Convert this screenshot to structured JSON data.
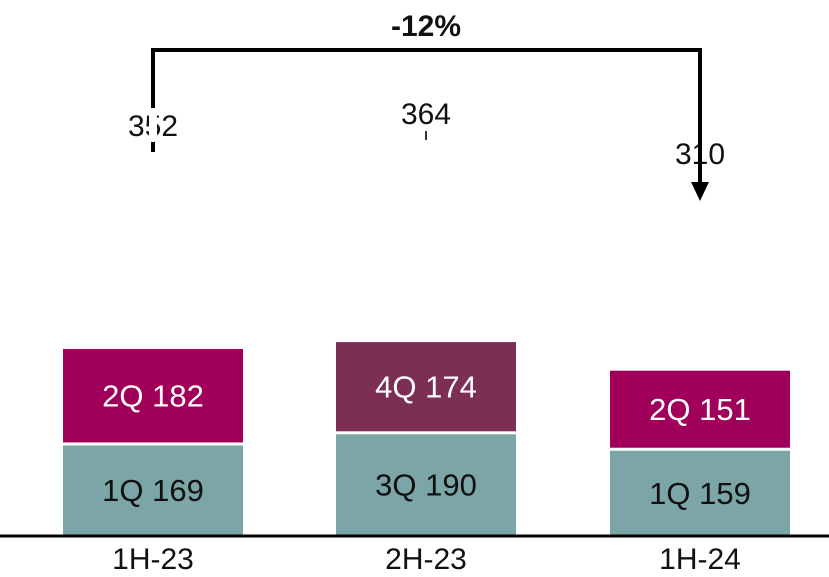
{
  "chart_data": {
    "type": "bar",
    "stacked": true,
    "categories": [
      "1H-23",
      "2H-23",
      "1H-24"
    ],
    "series": [
      {
        "role": "lower",
        "labels": [
          "1Q",
          "3Q",
          "1Q"
        ],
        "values": [
          169,
          190,
          159
        ]
      },
      {
        "role": "upper",
        "labels": [
          "2Q",
          "4Q",
          "2Q"
        ],
        "values": [
          182,
          174,
          151
        ]
      }
    ],
    "totals": [
      352,
      364,
      310
    ],
    "annotation": {
      "text": "-12%",
      "from": "1H-23",
      "to": "1H-24"
    },
    "colors": {
      "lower": "#7BA5A6",
      "upper": [
        "#A0005A",
        "#7D2E55",
        "#A0005A"
      ],
      "lower_text": "#111111",
      "upper_text": "#FFFFFF",
      "axis": "#000000"
    },
    "grid": false,
    "ylim": [
      0,
      364
    ]
  }
}
